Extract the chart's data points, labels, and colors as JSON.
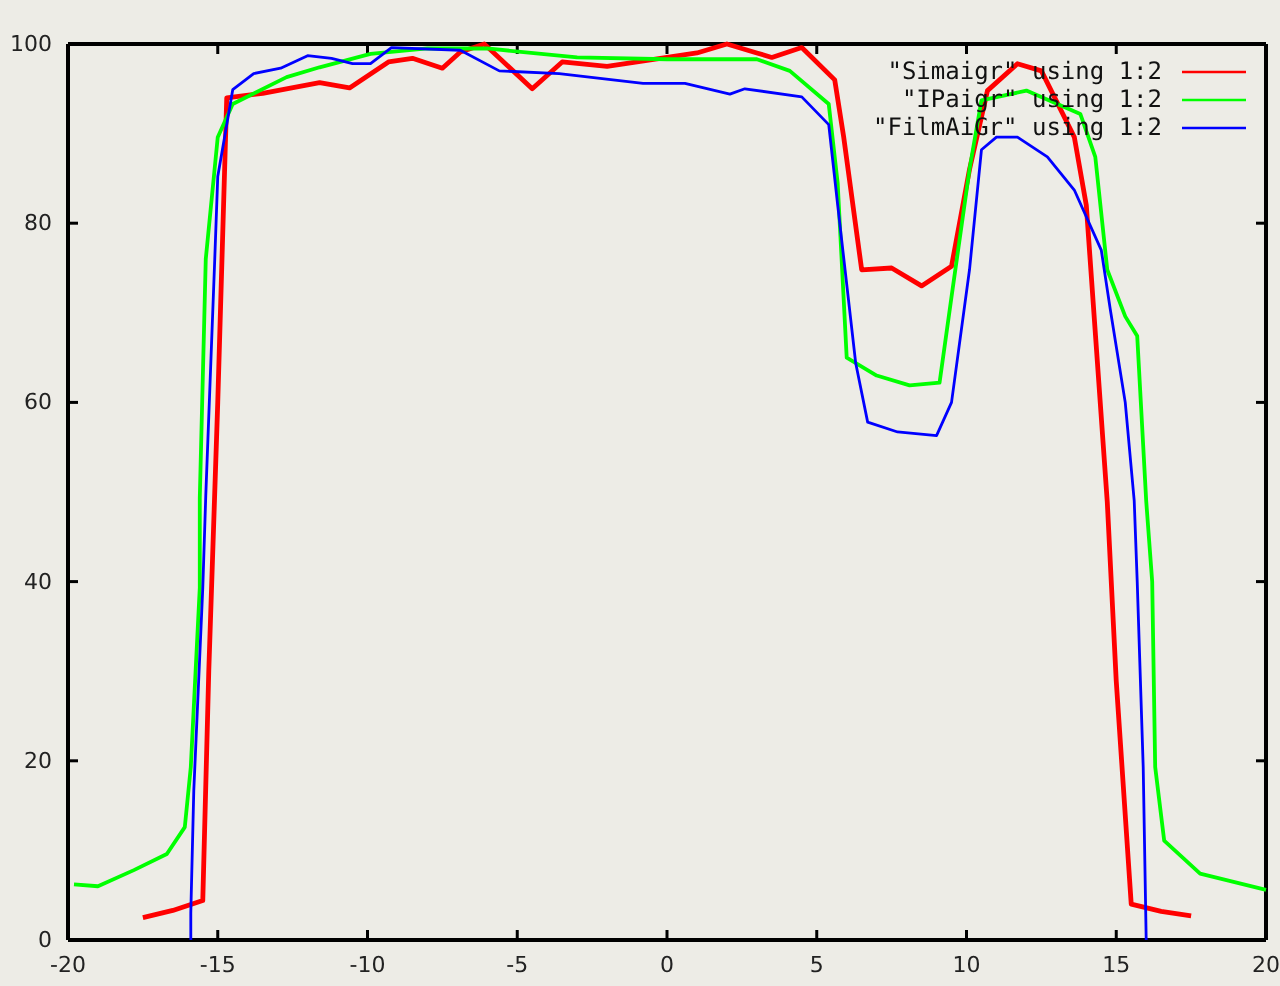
{
  "chart_data": {
    "type": "line",
    "xlim": [
      -20,
      20
    ],
    "ylim": [
      0,
      100
    ],
    "xticks": [
      -20,
      -15,
      -10,
      -5,
      0,
      5,
      10,
      15,
      20
    ],
    "yticks": [
      0,
      20,
      40,
      60,
      80,
      100
    ],
    "legend": "top right",
    "grid": false,
    "marker": "none",
    "line_style": "solid",
    "series": [
      {
        "name": "\"Simaigr\" using 1:2",
        "color": "#ff0000",
        "x": [
          -17.5,
          -16.5,
          -15.5,
          -15.3,
          -15.0,
          -14.7,
          -13.5,
          -11.6,
          -10.6,
          -9.3,
          -8.5,
          -7.5,
          -6.9,
          -6.1,
          -4.5,
          -3.5,
          -2,
          0,
          1,
          2,
          3,
          3.5,
          4.5,
          5.6,
          5.9,
          6.5,
          7.5,
          8.5,
          9.5,
          10.1,
          10.7,
          11.7,
          12.5,
          13.6,
          14.0,
          14.7,
          15.0,
          15.5,
          16.5,
          17.5
        ],
        "values": [
          2.5,
          3.3,
          4.4,
          30,
          60,
          94,
          94.5,
          95.7,
          95.1,
          98,
          98.4,
          97.3,
          99.1,
          100,
          95,
          98,
          97.5,
          98.5,
          99,
          100,
          99,
          98.5,
          99.6,
          96,
          89.6,
          74.8,
          75,
          73,
          75.2,
          86,
          94.8,
          97.8,
          97,
          89.6,
          82,
          48.9,
          28.9,
          4,
          3.2,
          2.7
        ]
      },
      {
        "name": "\"IPaigr\" using 1:2",
        "color": "#00ff00",
        "x": [
          -19.8,
          -19,
          -17.8,
          -16.7,
          -16.1,
          -15.9,
          -15.6,
          -15.6,
          -15.4,
          -15.0,
          -14.5,
          -12.7,
          -11.6,
          -9.9,
          -8,
          -6,
          -3,
          0,
          3,
          4.1,
          5.4,
          5.7,
          6.0,
          7.0,
          8.1,
          9.1,
          9.5,
          10.1,
          10.5,
          12.0,
          13.8,
          14.3,
          14.7,
          15.3,
          15.7,
          16.0,
          16.2,
          16.3,
          16.6,
          17.8,
          20
        ],
        "values": [
          6.2,
          6.0,
          7.8,
          9.6,
          12.6,
          19.3,
          39.3,
          49.3,
          76,
          89.6,
          93.3,
          96.3,
          97.4,
          98.9,
          99.5,
          99.5,
          98.5,
          98.3,
          98.3,
          97.0,
          93.3,
          84.4,
          65,
          63,
          61.9,
          62.2,
          71.8,
          86,
          93.7,
          94.8,
          92.2,
          87.4,
          74.8,
          69.6,
          67.4,
          49,
          40,
          19.3,
          11.1,
          7.4,
          5.6
        ]
      },
      {
        "name": "\"FilmAiGr\" using 1:2",
        "color": "#0000ff",
        "x": [
          -15.9,
          -15.9,
          -15.8,
          -15.5,
          -15.4,
          -15.1,
          -15.0,
          -14.7,
          -14.5,
          -13.8,
          -12.9,
          -12.0,
          -11.2,
          -10.5,
          -9.9,
          -9.2,
          -6.9,
          -5.6,
          -3.6,
          -0.8,
          0.6,
          2.1,
          2.6,
          4.5,
          5.4,
          5.7,
          6.3,
          6.7,
          7.7,
          9.0,
          9.5,
          10.1,
          10.5,
          11.0,
          11.7,
          12.7,
          13.6,
          14.5,
          14.8,
          15.3,
          15.6,
          15.7,
          15.9,
          16.0
        ],
        "values": [
          0,
          3,
          16.7,
          39.3,
          49.6,
          76,
          85.2,
          91,
          94.9,
          96.7,
          97.3,
          98.7,
          98.4,
          97.8,
          97.8,
          99.6,
          99.3,
          97,
          96.7,
          95.6,
          95.6,
          94.4,
          95,
          94.1,
          91,
          82,
          64.4,
          57.8,
          56.7,
          56.3,
          60,
          74.8,
          88.2,
          89.6,
          89.6,
          87.4,
          83.7,
          77,
          70.4,
          60,
          49,
          40,
          19.3,
          0
        ]
      }
    ]
  }
}
